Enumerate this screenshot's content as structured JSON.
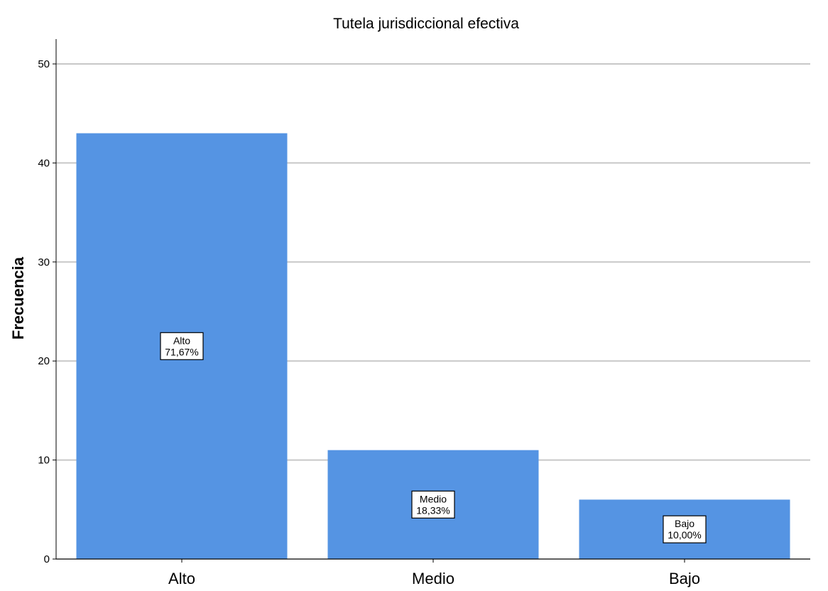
{
  "chart_data": {
    "type": "bar",
    "title": "Tutela jurisdiccional efectiva",
    "xlabel": "",
    "ylabel": "Frecuencia",
    "categories": [
      "Alto",
      "Medio",
      "Bajo"
    ],
    "values": [
      43,
      11,
      6
    ],
    "bar_labels": [
      [
        "Alto",
        "71,67%"
      ],
      [
        "Medio",
        "18,33%"
      ],
      [
        "Bajo",
        "10,00%"
      ]
    ],
    "ylim": [
      0,
      52
    ],
    "yticks": [
      0,
      10,
      20,
      30,
      40,
      50
    ],
    "grid": true,
    "legend": "none",
    "colors": {
      "bar": "#5594e3",
      "grid": "#c8c8c8",
      "axis": "#000000",
      "label_box_border": "#000000",
      "label_box_fill": "#ffffff"
    }
  }
}
